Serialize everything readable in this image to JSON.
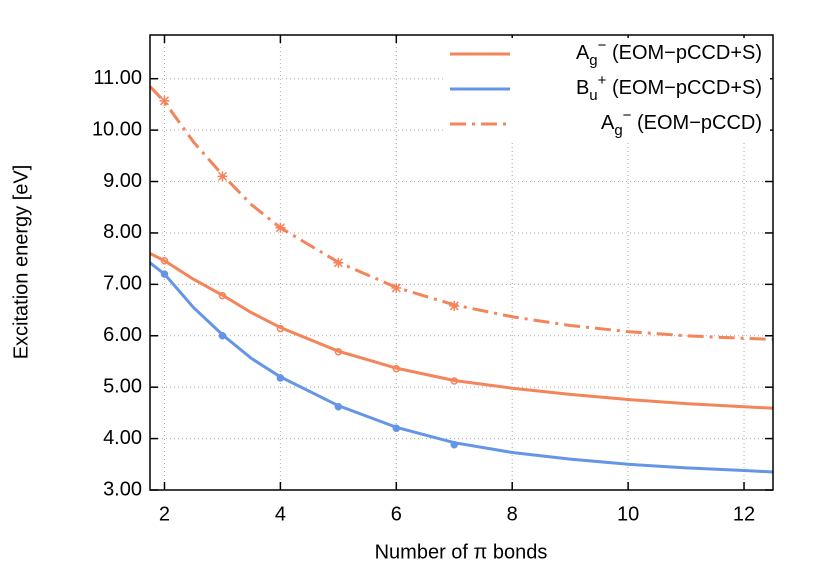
{
  "chart_data": {
    "type": "line",
    "xlabel": "Number of π bonds",
    "ylabel": "Excitation energy [eV]",
    "xlim": [
      1.75,
      12.5
    ],
    "ylim": [
      3,
      11.85
    ],
    "xticks": [
      2,
      4,
      6,
      8,
      10,
      12
    ],
    "yticks": [
      {
        "value": 3,
        "label": "3.00"
      },
      {
        "value": 4,
        "label": "4.00"
      },
      {
        "value": 5,
        "label": "5.00"
      },
      {
        "value": 6,
        "label": "6.00"
      },
      {
        "value": 7,
        "label": "7.00"
      },
      {
        "value": 8,
        "label": "8.00"
      },
      {
        "value": 9,
        "label": "9.00"
      },
      {
        "value": 10,
        "label": "10.00"
      },
      {
        "value": 11,
        "label": "11.00"
      }
    ],
    "grid": true,
    "legend": "upper right",
    "series": [
      {
        "name": {
          "base": "A",
          "sub": "g",
          "sup": "−",
          "suffix": " (EOM−pCCD+S)"
        },
        "color": "#f4845a",
        "dash": "solid",
        "x": [
          1.75,
          2,
          2.5,
          3,
          3.5,
          4,
          5,
          6,
          7,
          8,
          9,
          10,
          11,
          12,
          12.5
        ],
        "values": [
          7.6,
          7.46,
          7.1,
          6.79,
          6.45,
          6.16,
          5.7,
          5.37,
          5.13,
          4.98,
          4.86,
          4.76,
          4.68,
          4.62,
          4.59
        ]
      },
      {
        "name": {
          "base": "B",
          "sub": "u",
          "sup": "+",
          "suffix": " (EOM−pCCD+S)"
        },
        "color": "#6495e6",
        "dash": "solid",
        "x": [
          1.75,
          2,
          2.5,
          3,
          3.5,
          4,
          5,
          6,
          7,
          8,
          9,
          10,
          11,
          12,
          12.5
        ],
        "values": [
          7.42,
          7.2,
          6.55,
          6.02,
          5.56,
          5.2,
          4.64,
          4.22,
          3.92,
          3.73,
          3.6,
          3.5,
          3.43,
          3.38,
          3.35
        ]
      },
      {
        "name": {
          "base": "A",
          "sub": "g",
          "sup": "−",
          "suffix": " (EOM−pCCD)"
        },
        "color": "#f4845a",
        "dash": "dashdot",
        "x": [
          1.75,
          2,
          2.5,
          3,
          3.5,
          4,
          5,
          6,
          7,
          8,
          9,
          10,
          11,
          12,
          12.5
        ],
        "values": [
          10.85,
          10.55,
          9.77,
          9.13,
          8.55,
          8.1,
          7.43,
          6.94,
          6.6,
          6.37,
          6.2,
          6.08,
          6.0,
          5.95,
          5.93
        ]
      }
    ],
    "markers": [
      {
        "color": "#f4845a",
        "marker": "open-circle",
        "x": [
          2,
          3,
          4,
          5,
          6,
          7
        ],
        "values": [
          7.46,
          6.78,
          6.14,
          5.69,
          5.36,
          5.12
        ]
      },
      {
        "color": "#6495e6",
        "marker": "filled-circle",
        "x": [
          2,
          3,
          4,
          5,
          6,
          7
        ],
        "values": [
          7.2,
          6.0,
          5.18,
          4.62,
          4.2,
          3.88
        ]
      },
      {
        "color": "#f4845a",
        "marker": "asterisk",
        "x": [
          2,
          3,
          4,
          5,
          6,
          7
        ],
        "values": [
          10.57,
          9.1,
          8.1,
          7.42,
          6.93,
          6.58
        ]
      }
    ]
  }
}
